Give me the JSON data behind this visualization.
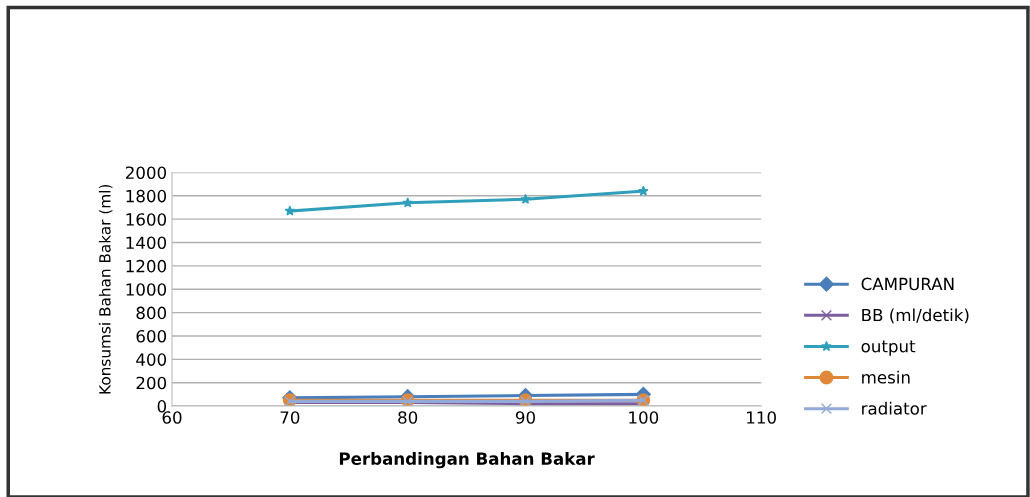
{
  "chart_data": {
    "type": "line",
    "xlabel": "Perbandingan Bahan Bakar",
    "ylabel": "Konsumsi Bahan Bakar (ml)",
    "x": [
      70,
      80,
      90,
      100
    ],
    "series": [
      {
        "name": "CAMPURAN",
        "color": "#4a7ebb",
        "marker": "diamond",
        "values": [
          70,
          80,
          90,
          100
        ]
      },
      {
        "name": "BB (ml/detik)",
        "color": "#7d5fa0",
        "marker": "cross",
        "values": [
          30,
          30,
          20,
          20
        ]
      },
      {
        "name": "output",
        "color": "#2f9fbb",
        "marker": "star",
        "values": [
          1670,
          1740,
          1770,
          1840
        ]
      },
      {
        "name": "mesin",
        "color": "#e0883a",
        "marker": "circle",
        "values": [
          50,
          50,
          50,
          50
        ]
      },
      {
        "name": "radiator",
        "color": "#93a9d8",
        "marker": "cross",
        "values": [
          40,
          40,
          40,
          50
        ]
      }
    ],
    "xlim": [
      60,
      110
    ],
    "xticks": [
      60,
      70,
      80,
      90,
      100,
      110
    ],
    "ylim": [
      0,
      2000
    ],
    "yticks": [
      0,
      200,
      400,
      600,
      800,
      1000,
      1200,
      1400,
      1600,
      1800,
      2000
    ],
    "grid": "y",
    "legend": "right"
  }
}
